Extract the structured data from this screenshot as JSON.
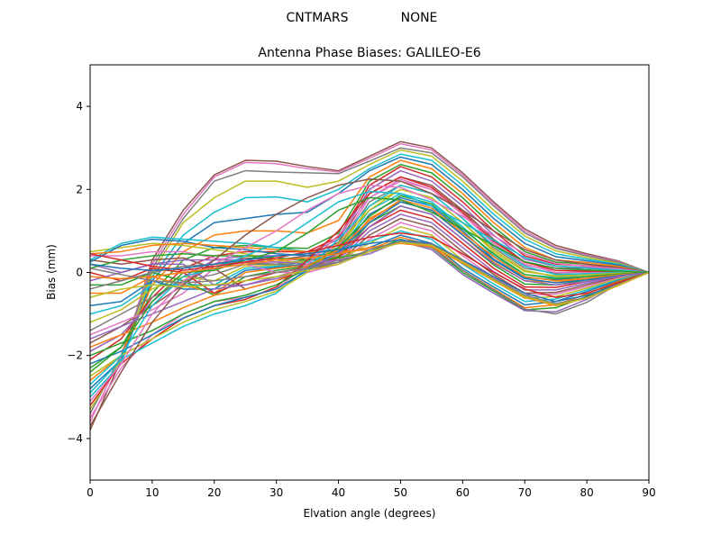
{
  "header": {
    "suptitle_left": "CNTMARS",
    "suptitle_right": "NONE"
  },
  "chart_data": {
    "type": "line",
    "title": "Antenna Phase Biases: GALILEO-E6",
    "xlabel": "Elvation angle (degrees)",
    "ylabel": "Bias (mm)",
    "xlim": [
      0,
      90
    ],
    "ylim": [
      -5,
      5
    ],
    "xticks": [
      0,
      10,
      20,
      30,
      40,
      50,
      60,
      70,
      80,
      90
    ],
    "yticks": [
      -4,
      -2,
      0,
      2,
      4
    ],
    "grid": false,
    "legend": "none",
    "x": [
      0,
      5,
      10,
      15,
      20,
      25,
      30,
      35,
      40,
      45,
      50,
      55,
      60,
      65,
      70,
      75,
      80,
      85,
      90
    ],
    "series": [
      {
        "values": [
          -3.8,
          -2.1,
          0.3,
          1.5,
          2.35,
          2.7,
          2.68,
          2.55,
          2.45,
          2.8,
          3.15,
          3.0,
          2.4,
          1.7,
          1.05,
          0.65,
          0.45,
          0.28,
          0.0
        ],
        "color": "#8c564b"
      },
      {
        "values": [
          -3.6,
          -2.0,
          0.2,
          1.4,
          2.3,
          2.65,
          2.62,
          2.5,
          2.42,
          2.75,
          3.1,
          2.95,
          2.35,
          1.65,
          1.0,
          0.6,
          0.42,
          0.26,
          0.0
        ],
        "color": "#e377c2"
      },
      {
        "values": [
          -3.4,
          -2.0,
          0.1,
          1.3,
          2.2,
          2.45,
          2.42,
          2.4,
          2.38,
          2.68,
          3.0,
          2.88,
          2.3,
          1.6,
          0.95,
          0.58,
          0.4,
          0.25,
          0.0
        ],
        "color": "#7f7f7f"
      },
      {
        "values": [
          -3.3,
          -2.1,
          0.0,
          1.2,
          1.8,
          2.2,
          2.2,
          2.05,
          2.2,
          2.6,
          2.95,
          2.8,
          2.2,
          1.5,
          0.88,
          0.52,
          0.36,
          0.22,
          0.0
        ],
        "color": "#bcbd22"
      },
      {
        "values": [
          -3.0,
          -2.2,
          -0.1,
          0.9,
          1.45,
          1.8,
          1.82,
          1.7,
          2.0,
          2.5,
          2.85,
          2.7,
          2.1,
          1.4,
          0.8,
          0.45,
          0.32,
          0.2,
          0.0
        ],
        "color": "#17becf"
      },
      {
        "values": [
          -2.8,
          -2.1,
          -0.2,
          0.7,
          1.2,
          1.3,
          1.4,
          1.45,
          1.9,
          2.45,
          2.78,
          2.6,
          2.0,
          1.3,
          0.7,
          0.38,
          0.28,
          0.18,
          0.0
        ],
        "color": "#1f77b4"
      },
      {
        "values": [
          -2.6,
          -2.0,
          -0.3,
          0.5,
          0.9,
          1.0,
          1.0,
          0.95,
          1.25,
          2.3,
          2.7,
          2.5,
          1.9,
          1.2,
          0.6,
          0.3,
          0.24,
          0.15,
          0.0
        ],
        "color": "#ff7f0e"
      },
      {
        "values": [
          -2.3,
          -1.8,
          -0.5,
          0.3,
          0.6,
          0.65,
          0.6,
          0.58,
          0.95,
          2.2,
          2.6,
          2.4,
          1.8,
          1.1,
          0.5,
          0.25,
          0.2,
          0.12,
          0.0
        ],
        "color": "#2ca02c"
      },
      {
        "values": [
          -2.1,
          -1.6,
          -0.6,
          0.1,
          0.4,
          0.5,
          0.5,
          0.5,
          0.85,
          2.1,
          2.55,
          2.3,
          1.7,
          1.0,
          0.4,
          0.2,
          0.16,
          0.1,
          0.0
        ],
        "color": "#d62728"
      },
      {
        "values": [
          -1.9,
          -1.5,
          -0.7,
          -0.1,
          0.3,
          0.4,
          0.4,
          0.45,
          0.8,
          2.0,
          2.45,
          2.2,
          1.6,
          0.9,
          0.32,
          0.15,
          0.12,
          0.08,
          0.0
        ],
        "color": "#9467bd"
      },
      {
        "values": [
          -1.7,
          -1.3,
          -0.8,
          -0.3,
          0.2,
          0.35,
          0.3,
          0.4,
          0.72,
          1.9,
          2.3,
          2.1,
          1.5,
          0.8,
          0.25,
          0.1,
          0.1,
          0.06,
          0.0
        ],
        "color": "#8c564b"
      },
      {
        "values": [
          -1.5,
          -1.2,
          -0.9,
          -0.5,
          0.1,
          0.25,
          0.25,
          0.35,
          0.65,
          1.8,
          2.2,
          2.0,
          1.4,
          0.7,
          0.18,
          0.05,
          0.06,
          0.04,
          0.0
        ],
        "color": "#e377c2"
      },
      {
        "values": [
          -1.4,
          -1.0,
          -0.6,
          -0.2,
          -0.05,
          0.2,
          0.2,
          0.3,
          0.6,
          1.7,
          2.1,
          1.9,
          1.3,
          0.6,
          0.1,
          -0.02,
          0.02,
          0.03,
          0.0
        ],
        "color": "#7f7f7f"
      },
      {
        "values": [
          -1.2,
          -0.9,
          -0.4,
          -0.1,
          -0.2,
          0.15,
          0.18,
          0.28,
          0.55,
          1.6,
          2.0,
          1.8,
          1.2,
          0.5,
          0.02,
          -0.08,
          -0.02,
          0.02,
          0.0
        ],
        "color": "#bcbd22"
      },
      {
        "values": [
          -1.0,
          -0.8,
          -0.3,
          -0.3,
          -0.3,
          0.1,
          0.15,
          0.25,
          0.5,
          1.5,
          1.9,
          1.7,
          1.1,
          0.4,
          -0.05,
          -0.12,
          -0.06,
          0.0,
          0.0
        ],
        "color": "#17becf"
      },
      {
        "values": [
          -0.8,
          -0.7,
          -0.2,
          -0.4,
          -0.4,
          0.05,
          0.12,
          0.2,
          0.45,
          1.4,
          1.8,
          1.6,
          1.0,
          0.32,
          -0.12,
          -0.18,
          -0.1,
          -0.02,
          0.0
        ],
        "color": "#1f77b4"
      },
      {
        "values": [
          -0.5,
          -0.5,
          -0.1,
          -0.3,
          -0.5,
          0.0,
          0.1,
          0.18,
          0.4,
          1.3,
          1.7,
          1.5,
          0.9,
          0.25,
          -0.2,
          -0.24,
          -0.14,
          -0.04,
          0.0
        ],
        "color": "#ff7f0e"
      },
      {
        "values": [
          -0.3,
          -0.3,
          0.0,
          -0.2,
          -0.55,
          -0.1,
          0.05,
          0.15,
          0.38,
          1.2,
          1.6,
          1.4,
          0.8,
          0.18,
          -0.28,
          -0.3,
          -0.18,
          -0.06,
          0.0
        ],
        "color": "#2ca02c"
      },
      {
        "values": [
          0.0,
          -0.2,
          0.1,
          0.0,
          -0.5,
          -0.2,
          0.0,
          0.12,
          0.35,
          1.1,
          1.5,
          1.3,
          0.7,
          0.1,
          -0.35,
          -0.36,
          -0.22,
          -0.08,
          0.0
        ],
        "color": "#d62728"
      },
      {
        "values": [
          0.2,
          0.0,
          0.2,
          0.2,
          -0.3,
          -0.3,
          -0.1,
          0.1,
          0.3,
          1.0,
          1.4,
          1.2,
          0.6,
          0.02,
          -0.42,
          -0.42,
          -0.26,
          -0.1,
          0.0
        ],
        "color": "#9467bd"
      },
      {
        "values": [
          0.3,
          0.2,
          0.3,
          0.35,
          0.1,
          -0.4,
          -0.2,
          0.05,
          0.25,
          0.9,
          1.3,
          1.1,
          0.5,
          -0.05,
          -0.5,
          -0.48,
          -0.3,
          -0.12,
          0.0
        ],
        "color": "#8c564b"
      },
      {
        "values": [
          0.4,
          0.4,
          0.5,
          0.5,
          0.35,
          0.2,
          0.0,
          0.0,
          0.2,
          0.8,
          1.2,
          1.0,
          0.4,
          -0.12,
          -0.55,
          -0.52,
          -0.34,
          -0.14,
          0.0
        ],
        "color": "#e377c2"
      },
      {
        "values": [
          0.5,
          0.6,
          0.7,
          0.65,
          0.55,
          0.45,
          0.3,
          0.2,
          0.3,
          0.7,
          1.1,
          0.9,
          0.3,
          -0.2,
          -0.62,
          -0.58,
          -0.38,
          -0.16,
          0.0
        ],
        "color": "#bcbd22"
      },
      {
        "values": [
          0.3,
          0.7,
          0.85,
          0.8,
          0.75,
          0.7,
          0.6,
          0.5,
          0.55,
          0.75,
          1.0,
          0.8,
          0.2,
          -0.28,
          -0.7,
          -0.64,
          -0.42,
          -0.18,
          0.0
        ],
        "color": "#17becf"
      },
      {
        "values": [
          0.25,
          0.65,
          0.8,
          0.75,
          0.6,
          0.55,
          0.45,
          0.4,
          0.45,
          0.6,
          0.9,
          0.7,
          0.1,
          -0.35,
          -0.78,
          -0.7,
          -0.46,
          -0.2,
          0.0
        ],
        "color": "#1f77b4"
      },
      {
        "values": [
          0.45,
          0.5,
          0.65,
          0.7,
          0.65,
          0.6,
          0.55,
          0.5,
          0.5,
          0.55,
          0.85,
          0.65,
          0.05,
          -0.4,
          -0.85,
          -0.78,
          -0.52,
          -0.22,
          0.0
        ],
        "color": "#ff7f0e"
      },
      {
        "values": [
          0.1,
          0.3,
          0.4,
          0.45,
          0.4,
          0.4,
          0.35,
          0.3,
          0.35,
          0.5,
          0.8,
          0.6,
          0.0,
          -0.45,
          -0.9,
          -0.85,
          -0.58,
          -0.24,
          0.0
        ],
        "color": "#2ca02c"
      },
      {
        "values": [
          -0.2,
          0.0,
          0.2,
          0.3,
          0.3,
          0.3,
          0.25,
          0.2,
          0.3,
          0.45,
          0.75,
          0.55,
          -0.05,
          -0.5,
          -0.92,
          -0.95,
          -0.65,
          -0.26,
          0.0
        ],
        "color": "#9467bd"
      },
      {
        "values": [
          -0.4,
          -0.2,
          0.0,
          0.15,
          0.2,
          0.25,
          0.2,
          0.15,
          0.25,
          0.5,
          0.72,
          0.6,
          0.05,
          -0.42,
          -0.88,
          -1.0,
          -0.72,
          -0.28,
          0.0
        ],
        "color": "#7f7f7f"
      },
      {
        "values": [
          -3.5,
          -2.3,
          -1.5,
          -1.0,
          -0.7,
          -0.6,
          -0.4,
          0.2,
          0.9,
          1.8,
          2.25,
          2.0,
          1.4,
          0.7,
          0.2,
          0.0,
          0.0,
          0.02,
          0.0
        ],
        "color": "#e377c2"
      },
      {
        "values": [
          -3.2,
          -2.2,
          -1.6,
          -1.1,
          -0.8,
          -0.65,
          -0.35,
          0.3,
          1.0,
          1.9,
          2.3,
          2.05,
          1.45,
          0.75,
          0.25,
          0.05,
          0.03,
          0.03,
          0.0
        ],
        "color": "#d62728"
      },
      {
        "values": [
          -2.9,
          -2.1,
          -1.7,
          -1.3,
          -1.0,
          -0.8,
          -0.5,
          0.1,
          0.8,
          1.6,
          2.1,
          1.9,
          1.3,
          0.65,
          0.15,
          -0.05,
          -0.03,
          0.0,
          0.0
        ],
        "color": "#17becf"
      },
      {
        "values": [
          -2.5,
          -2.0,
          -1.6,
          -1.2,
          -0.9,
          -0.7,
          -0.45,
          0.0,
          0.7,
          1.5,
          2.0,
          1.8,
          1.2,
          0.55,
          0.05,
          -0.1,
          -0.06,
          -0.02,
          0.0
        ],
        "color": "#bcbd22"
      },
      {
        "values": [
          -2.0,
          -1.7,
          -1.4,
          -1.0,
          -0.7,
          -0.55,
          -0.3,
          0.1,
          0.6,
          1.35,
          1.85,
          1.65,
          1.05,
          0.45,
          -0.05,
          -0.15,
          -0.1,
          -0.04,
          0.0
        ],
        "color": "#2ca02c"
      },
      {
        "values": [
          -1.8,
          -1.5,
          -1.2,
          -0.85,
          -0.55,
          -0.4,
          -0.2,
          0.15,
          0.55,
          1.25,
          1.75,
          1.55,
          0.95,
          0.38,
          -0.1,
          -0.2,
          -0.14,
          -0.06,
          0.0
        ],
        "color": "#ff7f0e"
      },
      {
        "values": [
          -2.2,
          -1.9,
          -1.5,
          -1.1,
          -0.8,
          -0.6,
          -0.4,
          0.05,
          0.5,
          1.2,
          1.7,
          1.5,
          0.9,
          0.3,
          -0.15,
          -0.25,
          -0.18,
          -0.08,
          0.0
        ],
        "color": "#1f77b4"
      },
      {
        "values": [
          -1.6,
          -1.3,
          -1.0,
          -0.7,
          -0.4,
          -0.3,
          -0.15,
          0.1,
          0.45,
          1.1,
          1.6,
          1.4,
          0.8,
          0.22,
          -0.2,
          -0.3,
          -0.22,
          -0.1,
          0.0
        ],
        "color": "#9467bd"
      },
      {
        "values": [
          -3.7,
          -2.4,
          -1.2,
          -0.3,
          0.3,
          0.9,
          1.4,
          1.8,
          2.1,
          2.25,
          2.2,
          1.9,
          1.5,
          1.0,
          0.55,
          0.3,
          0.2,
          0.12,
          0.0
        ],
        "color": "#8c564b"
      },
      {
        "values": [
          -3.1,
          -2.2,
          -1.0,
          -0.2,
          0.2,
          0.6,
          1.0,
          1.5,
          1.9,
          2.1,
          2.05,
          1.75,
          1.35,
          0.88,
          0.45,
          0.22,
          0.15,
          0.09,
          0.0
        ],
        "color": "#e377c2"
      },
      {
        "values": [
          -2.7,
          -2.0,
          -0.8,
          -0.1,
          0.1,
          0.4,
          0.7,
          1.2,
          1.7,
          1.95,
          1.9,
          1.6,
          1.2,
          0.78,
          0.36,
          0.16,
          0.1,
          0.06,
          0.0
        ],
        "color": "#17becf"
      },
      {
        "values": [
          -2.4,
          -1.8,
          -0.7,
          0.0,
          0.05,
          0.3,
          0.5,
          0.95,
          1.5,
          1.8,
          1.75,
          1.45,
          1.05,
          0.65,
          0.26,
          0.1,
          0.06,
          0.03,
          0.0
        ],
        "color": "#2ca02c"
      },
      {
        "values": [
          0.45,
          0.3,
          0.15,
          0.05,
          0.15,
          0.25,
          0.35,
          0.5,
          0.65,
          0.85,
          0.95,
          0.85,
          0.45,
          0.0,
          -0.4,
          -0.6,
          -0.5,
          -0.25,
          0.0
        ],
        "color": "#d62728"
      },
      {
        "values": [
          0.2,
          0.1,
          0.05,
          0.1,
          0.2,
          0.3,
          0.4,
          0.45,
          0.55,
          0.7,
          0.78,
          0.7,
          0.3,
          -0.1,
          -0.5,
          -0.7,
          -0.55,
          -0.3,
          0.0
        ],
        "color": "#1f77b4"
      },
      {
        "values": [
          -0.1,
          -0.15,
          -0.1,
          0.0,
          0.1,
          0.2,
          0.3,
          0.35,
          0.45,
          0.6,
          0.7,
          0.62,
          0.22,
          -0.2,
          -0.6,
          -0.8,
          -0.62,
          -0.32,
          0.0
        ],
        "color": "#ff7f0e"
      },
      {
        "values": [
          0.1,
          -0.05,
          -0.2,
          -0.25,
          -0.2,
          -0.1,
          0.0,
          0.1,
          0.25,
          0.55,
          0.75,
          0.68,
          0.28,
          -0.15,
          -0.55,
          -0.75,
          -0.6,
          -0.3,
          0.0
        ],
        "color": "#7f7f7f"
      },
      {
        "values": [
          -0.6,
          -0.4,
          -0.3,
          -0.35,
          -0.3,
          -0.2,
          -0.1,
          0.05,
          0.2,
          0.5,
          0.72,
          0.65,
          0.25,
          -0.18,
          -0.58,
          -0.78,
          -0.62,
          -0.31,
          0.0
        ],
        "color": "#bcbd22"
      }
    ]
  }
}
